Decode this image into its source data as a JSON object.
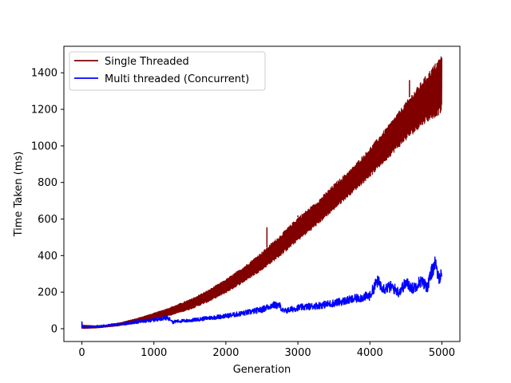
{
  "chart_data": {
    "type": "line",
    "title": "",
    "xlabel": "Generation",
    "ylabel": "Time Taken (ms)",
    "xlim": [
      -250,
      5250
    ],
    "ylim": [
      -70,
      1545
    ],
    "xticks": [
      0,
      1000,
      2000,
      3000,
      4000,
      5000
    ],
    "xtick_labels": [
      "0",
      "1000",
      "2000",
      "3000",
      "4000",
      "5000"
    ],
    "yticks": [
      0,
      200,
      400,
      600,
      800,
      1000,
      1200,
      1400
    ],
    "ytick_labels": [
      "0",
      "200",
      "400",
      "600",
      "800",
      "1000",
      "1200",
      "1400"
    ],
    "legend": {
      "position": "top-left"
    },
    "grid": false,
    "series": [
      {
        "name": "Single Threaded",
        "color": "#800000",
        "envelope": {
          "x": [
            0,
            250,
            500,
            750,
            1000,
            1250,
            1500,
            1750,
            2000,
            2250,
            2500,
            2750,
            3000,
            3250,
            3500,
            3750,
            4000,
            4250,
            4500,
            4750,
            5000
          ],
          "lower": [
            0,
            5,
            15,
            30,
            50,
            75,
            105,
            145,
            195,
            255,
            320,
            395,
            480,
            560,
            650,
            740,
            830,
            930,
            1030,
            1120,
            1180
          ],
          "upper": [
            20,
            15,
            30,
            55,
            85,
            120,
            160,
            210,
            270,
            340,
            420,
            510,
            610,
            690,
            790,
            880,
            990,
            1110,
            1240,
            1370,
            1500
          ]
        },
        "spikes": [
          {
            "x": 2570,
            "y": 555
          },
          {
            "x": 4550,
            "y": 1360
          },
          {
            "x": 3000,
            "y": 620
          }
        ]
      },
      {
        "name": "Multi threaded (Concurrent)",
        "color": "#0000ff",
        "x": [
          0,
          10,
          50,
          200,
          400,
          600,
          800,
          1000,
          1150,
          1250,
          1260,
          1300,
          1500,
          1750,
          2000,
          2250,
          2500,
          2650,
          2750,
          2800,
          2900,
          3000,
          3250,
          3500,
          3750,
          4000,
          4100,
          4200,
          4300,
          4400,
          4500,
          4600,
          4700,
          4800,
          4850,
          4900,
          4950,
          5000
        ],
        "y": [
          40,
          5,
          8,
          12,
          20,
          28,
          38,
          48,
          60,
          50,
          35,
          40,
          45,
          58,
          70,
          85,
          105,
          130,
          125,
          95,
          105,
          115,
          125,
          140,
          160,
          180,
          260,
          220,
          230,
          200,
          250,
          220,
          260,
          230,
          300,
          360,
          280,
          300
        ]
      }
    ]
  }
}
